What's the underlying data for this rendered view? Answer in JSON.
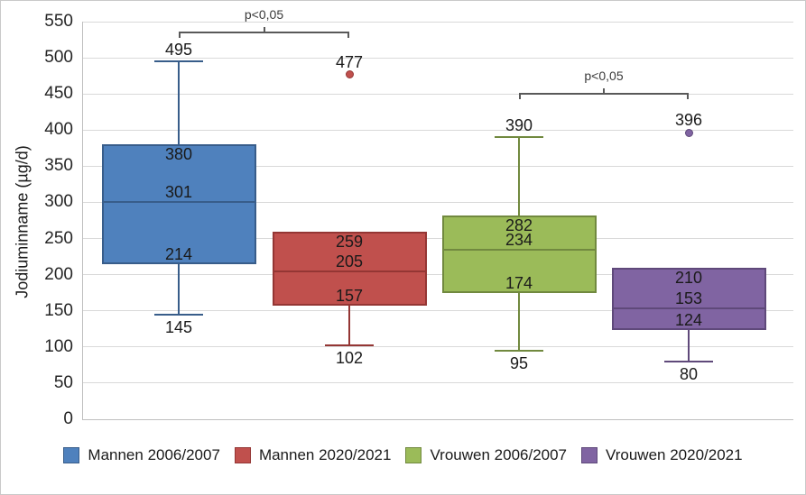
{
  "chart_data": {
    "type": "boxplot",
    "title": "",
    "ylabel": "Jodiuminname (µg/d)",
    "xlabel": "",
    "ylim": [
      0,
      550
    ],
    "ytick_step": 50,
    "ytick_labels": [
      "0",
      "50",
      "100",
      "150",
      "200",
      "250",
      "300",
      "350",
      "400",
      "450",
      "500",
      "550"
    ],
    "grid": true,
    "legend_position": "bottom",
    "series": [
      {
        "name": "Mannen 2006/2007",
        "fill": "#4f81bd",
        "stroke": "#385d8a",
        "whisker_low": 145,
        "q1": 214,
        "median": 301,
        "q3": 380,
        "whisker_high": 495,
        "outlier": null
      },
      {
        "name": "Mannen 2020/2021",
        "fill": "#c0504d",
        "stroke": "#943634",
        "whisker_low": 102,
        "q1": 157,
        "median": 205,
        "q3": 259,
        "whisker_high": null,
        "outlier": 477
      },
      {
        "name": "Vrouwen 2006/2007",
        "fill": "#9bbb59",
        "stroke": "#71893f",
        "whisker_low": 95,
        "q1": 174,
        "median": 234,
        "q3": 282,
        "whisker_high": 390,
        "outlier": null
      },
      {
        "name": "Vrouwen 2020/2021",
        "fill": "#8064a2",
        "stroke": "#5f497a",
        "whisker_low": 80,
        "q1": 124,
        "median": 153,
        "q3": 210,
        "whisker_high": null,
        "outlier": 396
      }
    ],
    "annotations": [
      {
        "label": "p<0,05",
        "between": [
          0,
          1
        ],
        "y_value": 535
      },
      {
        "label": "p<0,05",
        "between": [
          2,
          3
        ],
        "y_value": 450
      }
    ]
  }
}
